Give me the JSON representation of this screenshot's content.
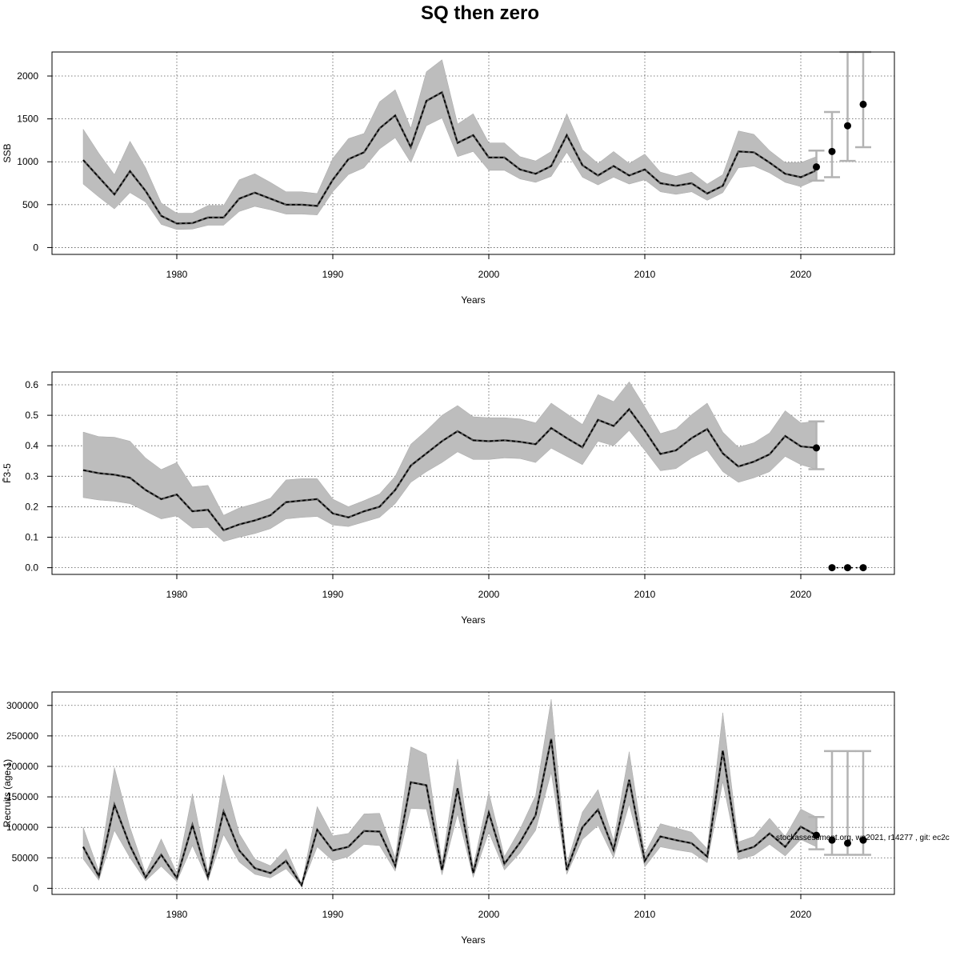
{
  "title": "SQ then zero",
  "footnote": "stockassessment.org, wg2021, r14277 , git: ec2c",
  "chart_data": [
    {
      "type": "line",
      "id": "ssb",
      "ylabel": "SSB",
      "xlabel": "Years",
      "xlim": [
        1972,
        2026
      ],
      "ylim": [
        -80,
        2280
      ],
      "xticks": [
        1980,
        1990,
        2000,
        2010,
        2020
      ],
      "yticks": [
        0,
        500,
        1000,
        1500,
        2000
      ],
      "grid": true,
      "x": [
        1974,
        1975,
        1976,
        1977,
        1978,
        1979,
        1980,
        1981,
        1982,
        1983,
        1984,
        1985,
        1986,
        1987,
        1988,
        1989,
        1990,
        1991,
        1992,
        1993,
        1994,
        1995,
        1996,
        1997,
        1998,
        1999,
        2000,
        2001,
        2002,
        2003,
        2004,
        2005,
        2006,
        2007,
        2008,
        2009,
        2010,
        2011,
        2012,
        2013,
        2014,
        2015,
        2016,
        2017,
        2018,
        2019,
        2020,
        2021
      ],
      "estimate": [
        1020,
        820,
        620,
        890,
        660,
        370,
        280,
        285,
        350,
        350,
        570,
        640,
        570,
        500,
        500,
        485,
        790,
        1030,
        1110,
        1390,
        1540,
        1170,
        1710,
        1810,
        1220,
        1310,
        1050,
        1050,
        910,
        860,
        950,
        1310,
        960,
        840,
        950,
        840,
        910,
        750,
        720,
        750,
        630,
        720,
        1120,
        1110,
        990,
        860,
        820,
        900
      ],
      "lower": [
        740,
        590,
        450,
        640,
        530,
        270,
        210,
        215,
        260,
        260,
        420,
        480,
        440,
        390,
        390,
        380,
        650,
        850,
        930,
        1150,
        1280,
        990,
        1420,
        1510,
        1060,
        1120,
        900,
        900,
        800,
        760,
        830,
        1110,
        820,
        730,
        820,
        740,
        790,
        650,
        620,
        650,
        550,
        640,
        930,
        950,
        870,
        760,
        710,
        790
      ],
      "upper": [
        1380,
        1100,
        850,
        1240,
        930,
        520,
        400,
        400,
        490,
        490,
        790,
        860,
        760,
        650,
        650,
        630,
        1040,
        1270,
        1330,
        1700,
        1840,
        1390,
        2050,
        2190,
        1440,
        1560,
        1220,
        1220,
        1060,
        1010,
        1120,
        1560,
        1140,
        980,
        1120,
        980,
        1090,
        880,
        830,
        880,
        740,
        850,
        1360,
        1320,
        1130,
        990,
        990,
        1060
      ],
      "forecast": {
        "x": [
          2021,
          2022,
          2023,
          2024
        ],
        "median": [
          940,
          1120,
          1420,
          1670
        ],
        "lower": [
          780,
          820,
          1010,
          1170
        ],
        "upper": [
          1130,
          1580,
          2280,
          2280
        ]
      }
    },
    {
      "type": "line",
      "id": "fbar",
      "ylabel": "F̄3-5",
      "xlabel": "Years",
      "xlim": [
        1972,
        2026
      ],
      "ylim": [
        -0.022,
        0.642
      ],
      "xticks": [
        1980,
        1990,
        2000,
        2010,
        2020
      ],
      "yticks": [
        0.0,
        0.1,
        0.2,
        0.3,
        0.4,
        0.5,
        0.6
      ],
      "ytick_labels": [
        "0.0",
        "0.1",
        "0.2",
        "0.3",
        "0.4",
        "0.5",
        "0.6"
      ],
      "grid": true,
      "x": [
        1974,
        1975,
        1976,
        1977,
        1978,
        1979,
        1980,
        1981,
        1982,
        1983,
        1984,
        1985,
        1986,
        1987,
        1988,
        1989,
        1990,
        1991,
        1992,
        1993,
        1994,
        1995,
        1996,
        1997,
        1998,
        1999,
        2000,
        2001,
        2002,
        2003,
        2004,
        2005,
        2006,
        2007,
        2008,
        2009,
        2010,
        2011,
        2012,
        2013,
        2014,
        2015,
        2016,
        2017,
        2018,
        2019,
        2020,
        2021
      ],
      "estimate": [
        0.32,
        0.31,
        0.305,
        0.295,
        0.255,
        0.225,
        0.24,
        0.185,
        0.19,
        0.123,
        0.142,
        0.155,
        0.172,
        0.215,
        0.22,
        0.225,
        0.178,
        0.165,
        0.185,
        0.2,
        0.255,
        0.335,
        0.375,
        0.415,
        0.448,
        0.418,
        0.415,
        0.418,
        0.413,
        0.405,
        0.458,
        0.425,
        0.395,
        0.485,
        0.465,
        0.52,
        0.45,
        0.373,
        0.385,
        0.425,
        0.455,
        0.375,
        0.332,
        0.348,
        0.372,
        0.432,
        0.398,
        0.393
      ],
      "lower": [
        0.23,
        0.222,
        0.218,
        0.21,
        0.185,
        0.16,
        0.17,
        0.13,
        0.132,
        0.086,
        0.1,
        0.112,
        0.128,
        0.16,
        0.165,
        0.168,
        0.14,
        0.135,
        0.15,
        0.165,
        0.21,
        0.28,
        0.315,
        0.345,
        0.38,
        0.355,
        0.355,
        0.36,
        0.358,
        0.345,
        0.392,
        0.365,
        0.338,
        0.415,
        0.4,
        0.45,
        0.385,
        0.318,
        0.325,
        0.36,
        0.385,
        0.315,
        0.28,
        0.295,
        0.315,
        0.365,
        0.338,
        0.323
      ],
      "upper": [
        0.445,
        0.43,
        0.428,
        0.415,
        0.36,
        0.322,
        0.345,
        0.265,
        0.27,
        0.172,
        0.196,
        0.21,
        0.228,
        0.288,
        0.292,
        0.292,
        0.225,
        0.2,
        0.22,
        0.242,
        0.3,
        0.405,
        0.45,
        0.5,
        0.532,
        0.495,
        0.492,
        0.492,
        0.488,
        0.475,
        0.54,
        0.505,
        0.47,
        0.568,
        0.545,
        0.61,
        0.528,
        0.44,
        0.455,
        0.502,
        0.54,
        0.445,
        0.395,
        0.41,
        0.442,
        0.515,
        0.475,
        0.48
      ],
      "forecast": {
        "x": [
          2021,
          2022,
          2023,
          2024
        ],
        "median": [
          0.393,
          0.0,
          0.0,
          0.0
        ],
        "lower": [
          0.323,
          0.0,
          0.0,
          0.0
        ],
        "upper": [
          0.48,
          0.0,
          0.0,
          0.0
        ]
      }
    },
    {
      "type": "line",
      "id": "recruits",
      "ylabel": "Recruits (age 1)",
      "xlabel": "Years",
      "xlim": [
        1972,
        2026
      ],
      "ylim": [
        -10000,
        322000
      ],
      "xticks": [
        1980,
        1990,
        2000,
        2010,
        2020
      ],
      "yticks": [
        0,
        50000,
        100000,
        150000,
        200000,
        250000,
        300000
      ],
      "ytick_labels": [
        "0",
        "50000",
        "100000",
        "150000",
        "200000",
        "250000",
        "300000"
      ],
      "grid": true,
      "x": [
        1974,
        1975,
        1976,
        1977,
        1978,
        1979,
        1980,
        1981,
        1982,
        1983,
        1984,
        1985,
        1986,
        1987,
        1988,
        1989,
        1990,
        1991,
        1992,
        1993,
        1994,
        1995,
        1996,
        1997,
        1998,
        1999,
        2000,
        2001,
        2002,
        2003,
        2004,
        2005,
        2006,
        2007,
        2008,
        2009,
        2010,
        2011,
        2012,
        2013,
        2014,
        2015,
        2016,
        2017,
        2018,
        2019,
        2020,
        2021
      ],
      "estimate": [
        68000,
        20000,
        137000,
        70000,
        18000,
        55000,
        17000,
        104000,
        18000,
        126000,
        62000,
        33000,
        25000,
        45000,
        5000,
        96000,
        62000,
        68000,
        94000,
        93000,
        37000,
        174000,
        169000,
        30000,
        164000,
        25000,
        124000,
        40000,
        75000,
        120000,
        245000,
        30000,
        100000,
        129000,
        63000,
        178000,
        45000,
        85000,
        79000,
        74000,
        52000,
        226000,
        60000,
        68000,
        90000,
        68000,
        101000,
        87000
      ],
      "lower": [
        48000,
        13000,
        95000,
        50000,
        12000,
        36000,
        11000,
        70000,
        13000,
        88000,
        43000,
        23000,
        17000,
        32000,
        3500,
        68000,
        45000,
        52000,
        72000,
        70000,
        28000,
        131000,
        130000,
        22000,
        122000,
        18000,
        92000,
        30000,
        58000,
        95000,
        190000,
        23000,
        80000,
        103000,
        50000,
        138000,
        35000,
        68000,
        63000,
        59000,
        42000,
        175000,
        47000,
        54000,
        72000,
        53000,
        80000,
        68000
      ],
      "upper": [
        100000,
        28000,
        198000,
        100000,
        25000,
        81000,
        25000,
        155000,
        26000,
        186000,
        90000,
        48000,
        37000,
        65000,
        7000,
        134000,
        86000,
        90000,
        122000,
        123000,
        50000,
        232000,
        220000,
        42000,
        212000,
        35000,
        157000,
        52000,
        97000,
        152000,
        310000,
        40000,
        125000,
        162000,
        78000,
        224000,
        57000,
        106000,
        99000,
        92000,
        65000,
        288000,
        76000,
        85000,
        115000,
        85000,
        130000,
        117000
      ],
      "forecast": {
        "x": [
          2021,
          2022,
          2023,
          2024
        ],
        "median": [
          87000,
          79000,
          74000,
          79000
        ],
        "lower": [
          64000,
          55000,
          55000,
          55000
        ],
        "upper": [
          117000,
          225000,
          225000,
          225000
        ]
      }
    }
  ]
}
